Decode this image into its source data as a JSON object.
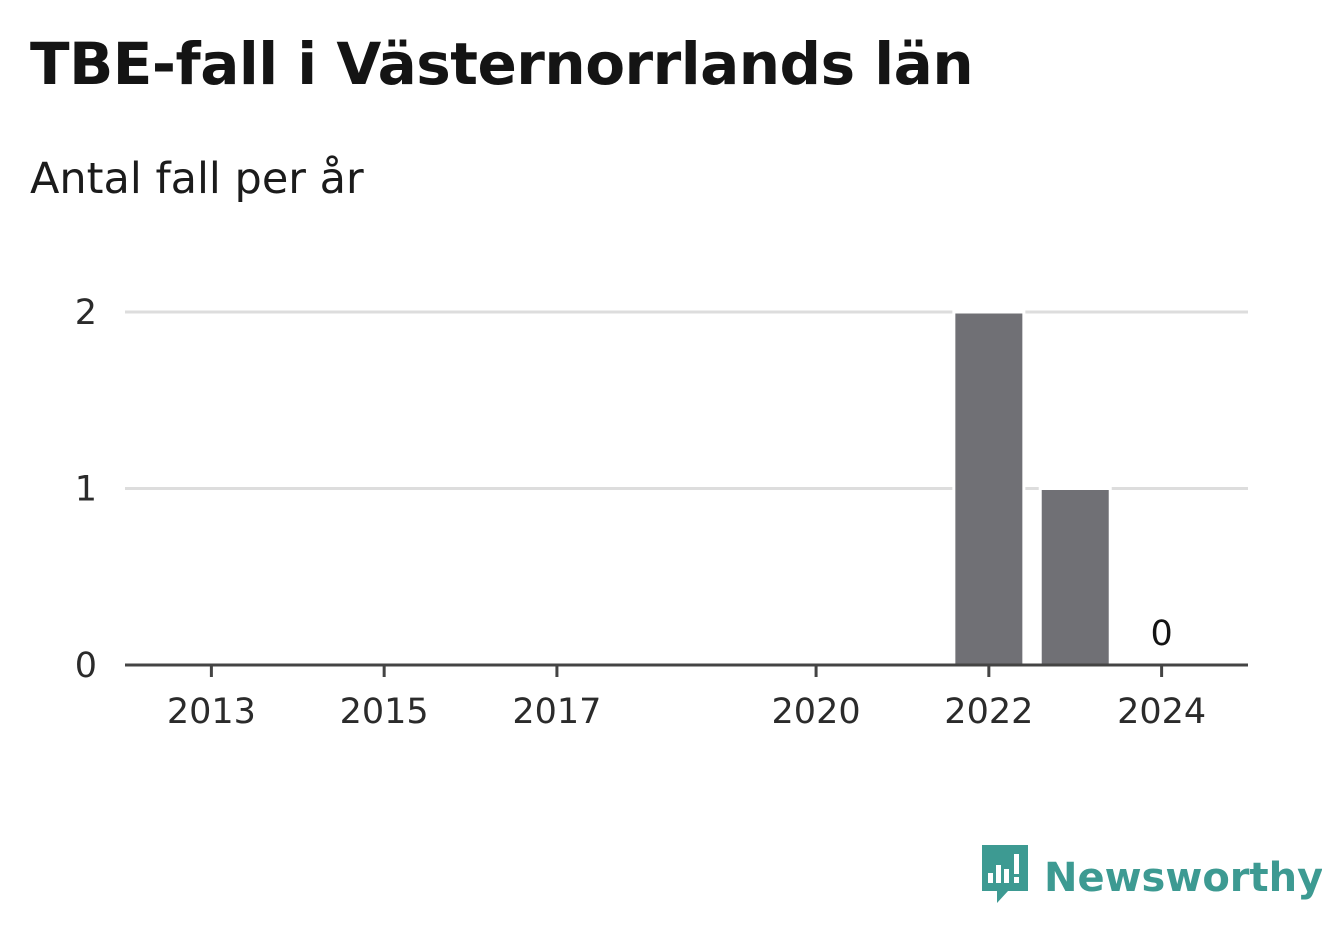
{
  "chart_data": {
    "type": "bar",
    "title": "TBE-fall i Västernorrlands län",
    "subtitle": "Antal fall per år",
    "x_ticks": [
      2013,
      2015,
      2017,
      2020,
      2022,
      2024
    ],
    "x_range": [
      2012,
      2025
    ],
    "series": [
      {
        "values": [
          {
            "x": 2022,
            "y": 2
          },
          {
            "x": 2023,
            "y": 1
          },
          {
            "x": 2024,
            "y": 0
          }
        ]
      }
    ],
    "data_labels": [
      {
        "x": 2024,
        "text": "0"
      }
    ],
    "y_ticks": [
      0,
      1,
      2
    ],
    "ylim": [
      0,
      2
    ],
    "grid": true,
    "bar_color": "#707075",
    "grid_color": "#dddddd",
    "axis_color": "#444444"
  },
  "branding": {
    "logo_text": "Newsworthy",
    "logo_icon": "newsworthy-chart-icon",
    "logo_color": "#3d9a92"
  }
}
